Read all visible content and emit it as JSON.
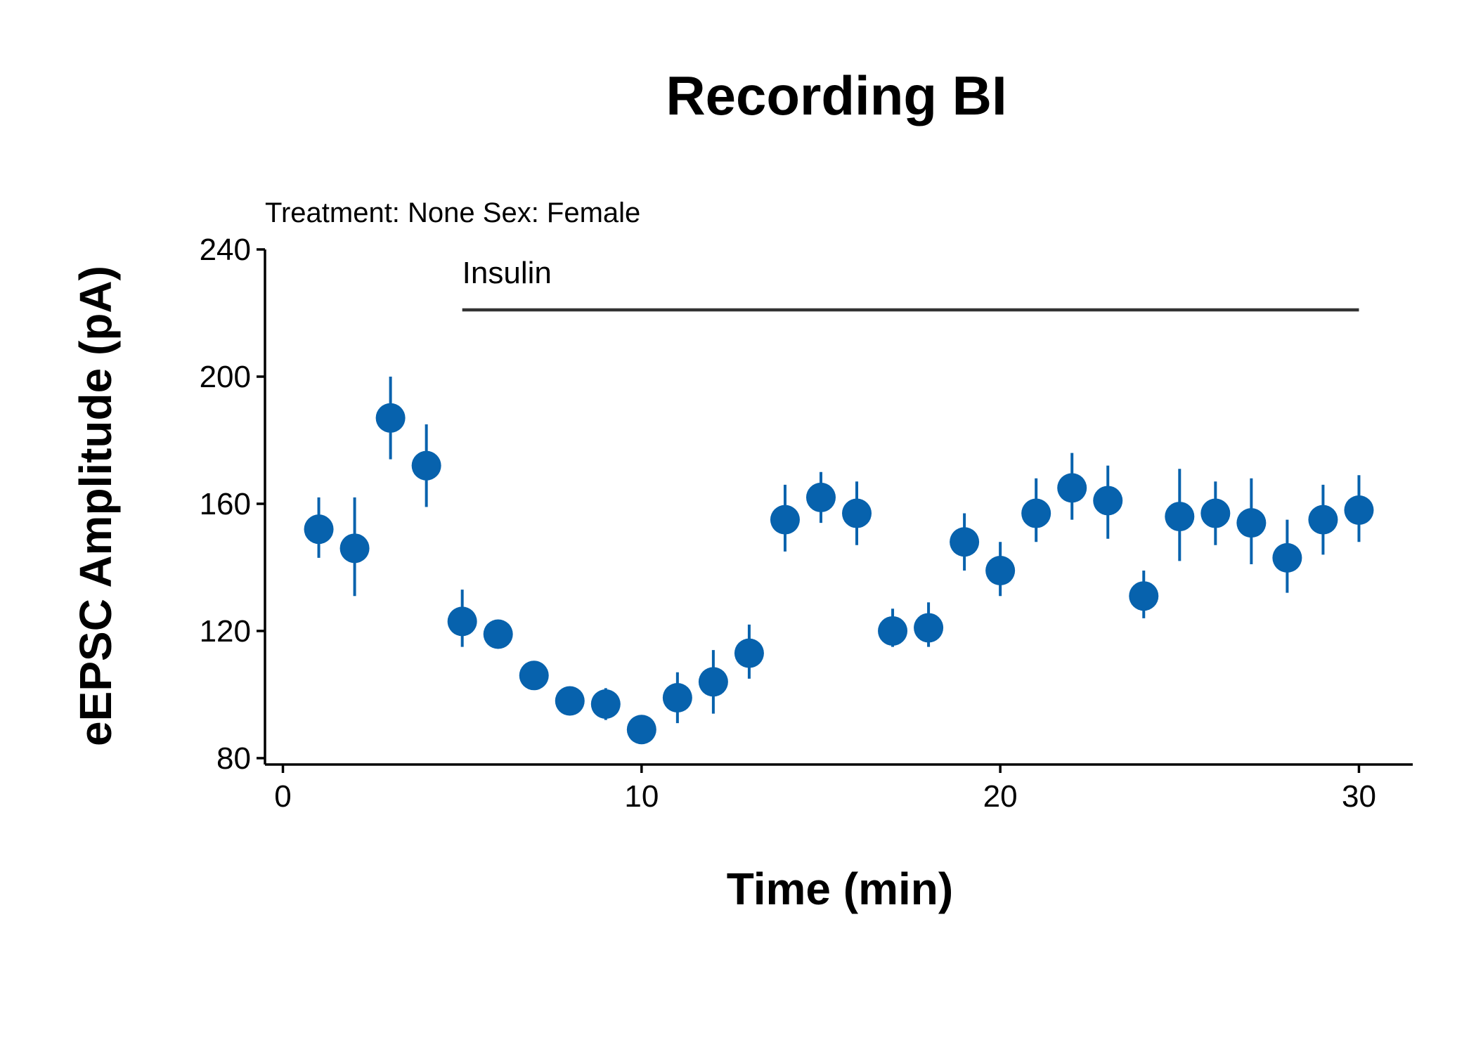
{
  "chart_data": {
    "type": "scatter",
    "title": "Recording BI",
    "subtitle": "Treatment: None  Sex: Female",
    "xlabel": "Time (min)",
    "ylabel": "eEPSC Amplitude (pA)",
    "xlim": [
      -0.5,
      31.5
    ],
    "ylim": [
      78,
      240
    ],
    "xticks": [
      0,
      10,
      20,
      30
    ],
    "yticks": [
      80,
      120,
      160,
      200,
      240
    ],
    "color": "#0762ad",
    "annotation": {
      "label": "Insulin",
      "x_start": 5,
      "x_end": 30,
      "y": 221,
      "color": "#333333"
    },
    "grid": false,
    "points": [
      {
        "x": 1,
        "y": 152,
        "lo": 143,
        "hi": 162
      },
      {
        "x": 2,
        "y": 146,
        "lo": 131,
        "hi": 162
      },
      {
        "x": 3,
        "y": 187,
        "lo": 174,
        "hi": 200
      },
      {
        "x": 4,
        "y": 172,
        "lo": 159,
        "hi": 185
      },
      {
        "x": 5,
        "y": 123,
        "lo": 115,
        "hi": 133
      },
      {
        "x": 6,
        "y": 119,
        "lo": 119,
        "hi": 119
      },
      {
        "x": 7,
        "y": 106,
        "lo": 106,
        "hi": 106
      },
      {
        "x": 8,
        "y": 98,
        "lo": 98,
        "hi": 98
      },
      {
        "x": 9,
        "y": 97,
        "lo": 92,
        "hi": 102
      },
      {
        "x": 10,
        "y": 89,
        "lo": 89,
        "hi": 89
      },
      {
        "x": 11,
        "y": 99,
        "lo": 91,
        "hi": 107
      },
      {
        "x": 12,
        "y": 104,
        "lo": 94,
        "hi": 114
      },
      {
        "x": 13,
        "y": 113,
        "lo": 105,
        "hi": 122
      },
      {
        "x": 14,
        "y": 155,
        "lo": 145,
        "hi": 166
      },
      {
        "x": 15,
        "y": 162,
        "lo": 154,
        "hi": 170
      },
      {
        "x": 16,
        "y": 157,
        "lo": 147,
        "hi": 167
      },
      {
        "x": 17,
        "y": 120,
        "lo": 115,
        "hi": 127
      },
      {
        "x": 18,
        "y": 121,
        "lo": 115,
        "hi": 129
      },
      {
        "x": 19,
        "y": 148,
        "lo": 139,
        "hi": 157
      },
      {
        "x": 20,
        "y": 139,
        "lo": 131,
        "hi": 148
      },
      {
        "x": 21,
        "y": 157,
        "lo": 148,
        "hi": 168
      },
      {
        "x": 22,
        "y": 165,
        "lo": 155,
        "hi": 176
      },
      {
        "x": 23,
        "y": 161,
        "lo": 149,
        "hi": 172
      },
      {
        "x": 24,
        "y": 131,
        "lo": 124,
        "hi": 139
      },
      {
        "x": 25,
        "y": 156,
        "lo": 142,
        "hi": 171
      },
      {
        "x": 26,
        "y": 157,
        "lo": 147,
        "hi": 167
      },
      {
        "x": 27,
        "y": 154,
        "lo": 141,
        "hi": 168
      },
      {
        "x": 28,
        "y": 143,
        "lo": 132,
        "hi": 155
      },
      {
        "x": 29,
        "y": 155,
        "lo": 144,
        "hi": 166
      },
      {
        "x": 30,
        "y": 158,
        "lo": 148,
        "hi": 169
      }
    ]
  }
}
